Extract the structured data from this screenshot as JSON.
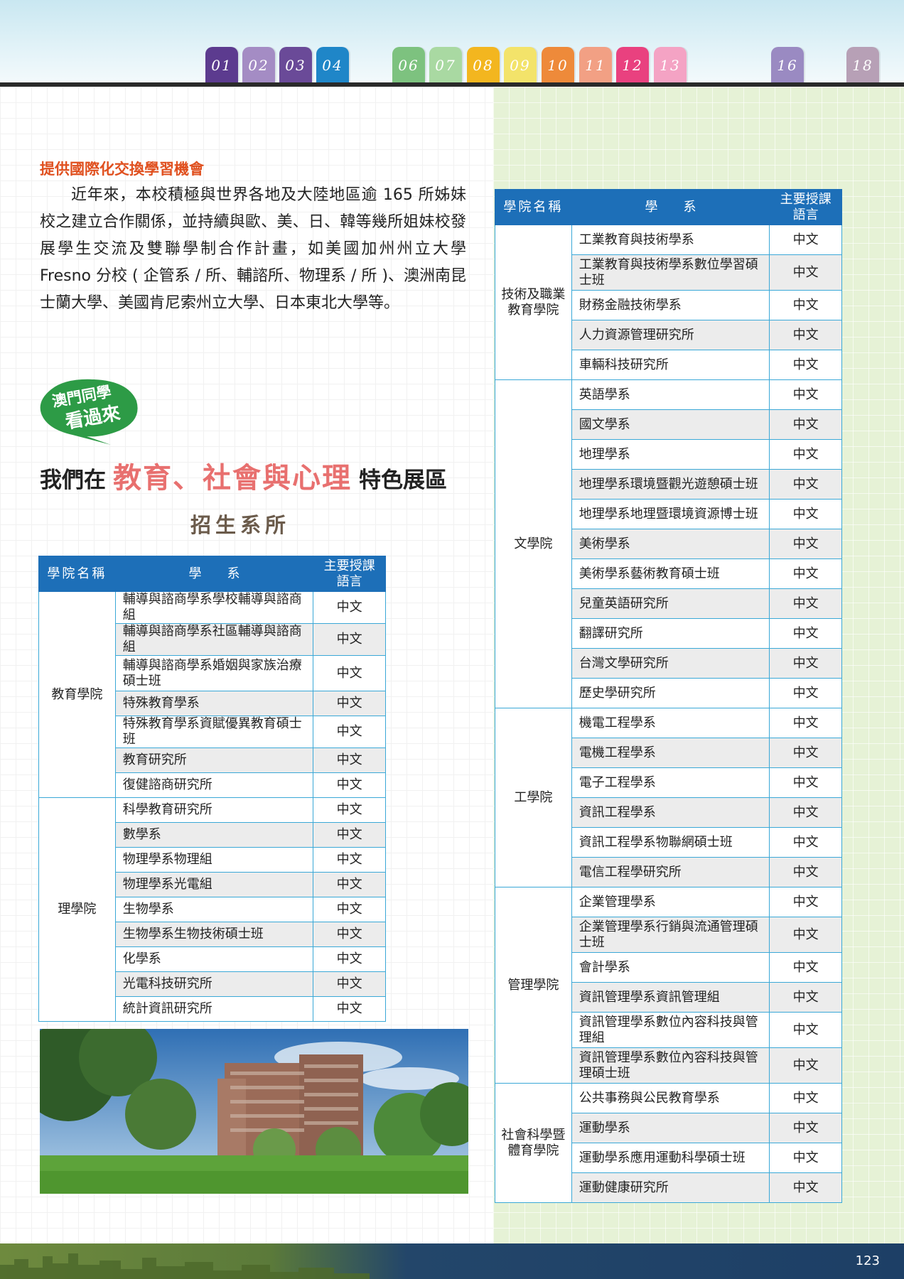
{
  "tabs": [
    {
      "label": "01",
      "color": "#5c3b8f"
    },
    {
      "label": "02",
      "color": "#a48cc4"
    },
    {
      "label": "03",
      "color": "#6a4a98"
    },
    {
      "label": "04",
      "color": "#1f86c8"
    },
    {
      "label": "06",
      "color": "#7dc27f"
    },
    {
      "label": "07",
      "color": "#a9d9a2"
    },
    {
      "label": "08",
      "color": "#f3b61f"
    },
    {
      "label": "09",
      "color": "#f3e36a"
    },
    {
      "label": "10",
      "color": "#ee8a3a"
    },
    {
      "label": "11",
      "color": "#f2a084"
    },
    {
      "label": "12",
      "color": "#e9417f"
    },
    {
      "label": "13",
      "color": "#f4a3c4"
    },
    {
      "label": "16",
      "color": "#9a8ac2"
    },
    {
      "label": "18",
      "color": "#b7a0b6"
    }
  ],
  "intro": {
    "title": "提供國際化交換學習機會",
    "text": "近年來，本校積極與世界各地及大陸地區逾 165 所姊妹校之建立合作關係，並持續與歐、美、日、韓等幾所姐妹校發展學生交流及雙聯學制合作計畫，如美國加州州立大學 Fresno 分校 ( 企管系 / 所、輔諮所、物理系 / 所 )、澳洲南昆士蘭大學、美國肯尼索州立大學、日本東北大學等。"
  },
  "bubble": {
    "line1": "澳門同學",
    "line2": "看過來"
  },
  "heading": {
    "prefix": "我們在",
    "highlight": "教育、社會與心理",
    "suffix": "特色展區"
  },
  "sub_heading": "招生系所",
  "table_headers": {
    "college": "學院名稱",
    "dept": "學　　系",
    "lang_line1": "主要授課",
    "lang_line2": "語言"
  },
  "left_table": [
    {
      "college": "教育學院",
      "rows": [
        {
          "dept": "輔導與諮商學系學校輔導與諮商組",
          "lang": "中文"
        },
        {
          "dept": "輔導與諮商學系社區輔導與諮商組",
          "lang": "中文"
        },
        {
          "dept": "輔導與諮商學系婚姻與家族治療碩士班",
          "lang": "中文"
        },
        {
          "dept": "特殊教育學系",
          "lang": "中文"
        },
        {
          "dept": "特殊教育學系資賦優異教育碩士班",
          "lang": "中文"
        },
        {
          "dept": "教育研究所",
          "lang": "中文"
        },
        {
          "dept": "復健諮商研究所",
          "lang": "中文"
        }
      ]
    },
    {
      "college": "理學院",
      "rows": [
        {
          "dept": "科學教育研究所",
          "lang": "中文"
        },
        {
          "dept": "數學系",
          "lang": "中文"
        },
        {
          "dept": "物理學系物理組",
          "lang": "中文"
        },
        {
          "dept": "物理學系光電組",
          "lang": "中文"
        },
        {
          "dept": "生物學系",
          "lang": "中文"
        },
        {
          "dept": "生物學系生物技術碩士班",
          "lang": "中文"
        },
        {
          "dept": "化學系",
          "lang": "中文"
        },
        {
          "dept": "光電科技研究所",
          "lang": "中文"
        },
        {
          "dept": "統計資訊研究所",
          "lang": "中文"
        }
      ]
    }
  ],
  "right_table": [
    {
      "college": "技術及職業教育學院",
      "rows": [
        {
          "dept": "工業教育與技術學系",
          "lang": "中文"
        },
        {
          "dept": "工業教育與技術學系數位學習碩士班",
          "lang": "中文"
        },
        {
          "dept": "財務金融技術學系",
          "lang": "中文"
        },
        {
          "dept": "人力資源管理研究所",
          "lang": "中文"
        },
        {
          "dept": "車輛科技研究所",
          "lang": "中文"
        }
      ]
    },
    {
      "college": "文學院",
      "rows": [
        {
          "dept": "英語學系",
          "lang": "中文"
        },
        {
          "dept": "國文學系",
          "lang": "中文"
        },
        {
          "dept": "地理學系",
          "lang": "中文"
        },
        {
          "dept": "地理學系環境暨觀光遊憩碩士班",
          "lang": "中文"
        },
        {
          "dept": "地理學系地理暨環境資源博士班",
          "lang": "中文"
        },
        {
          "dept": "美術學系",
          "lang": "中文"
        },
        {
          "dept": "美術學系藝術教育碩士班",
          "lang": "中文"
        },
        {
          "dept": "兒童英語研究所",
          "lang": "中文"
        },
        {
          "dept": "翻譯研究所",
          "lang": "中文"
        },
        {
          "dept": "台灣文學研究所",
          "lang": "中文"
        },
        {
          "dept": "歷史學研究所",
          "lang": "中文"
        }
      ]
    },
    {
      "college": "工學院",
      "rows": [
        {
          "dept": "機電工程學系",
          "lang": "中文"
        },
        {
          "dept": "電機工程學系",
          "lang": "中文"
        },
        {
          "dept": "電子工程學系",
          "lang": "中文"
        },
        {
          "dept": "資訊工程學系",
          "lang": "中文"
        },
        {
          "dept": "資訊工程學系物聯網碩士班",
          "lang": "中文"
        },
        {
          "dept": "電信工程學研究所",
          "lang": "中文"
        }
      ]
    },
    {
      "college": "管理學院",
      "rows": [
        {
          "dept": "企業管理學系",
          "lang": "中文"
        },
        {
          "dept": "企業管理學系行銷與流通管理碩士班",
          "lang": "中文"
        },
        {
          "dept": "會計學系",
          "lang": "中文"
        },
        {
          "dept": "資訊管理學系資訊管理組",
          "lang": "中文"
        },
        {
          "dept": "資訊管理學系數位內容科技與管理組",
          "lang": "中文"
        },
        {
          "dept": "資訊管理學系數位內容科技與管理碩士班",
          "lang": "中文"
        }
      ]
    },
    {
      "college": "社會科學暨體育學院",
      "rows": [
        {
          "dept": "公共事務與公民教育學系",
          "lang": "中文"
        },
        {
          "dept": "運動學系",
          "lang": "中文"
        },
        {
          "dept": "運動學系應用運動科學碩士班",
          "lang": "中文"
        },
        {
          "dept": "運動健康研究所",
          "lang": "中文"
        }
      ]
    }
  ],
  "page_number": "123"
}
